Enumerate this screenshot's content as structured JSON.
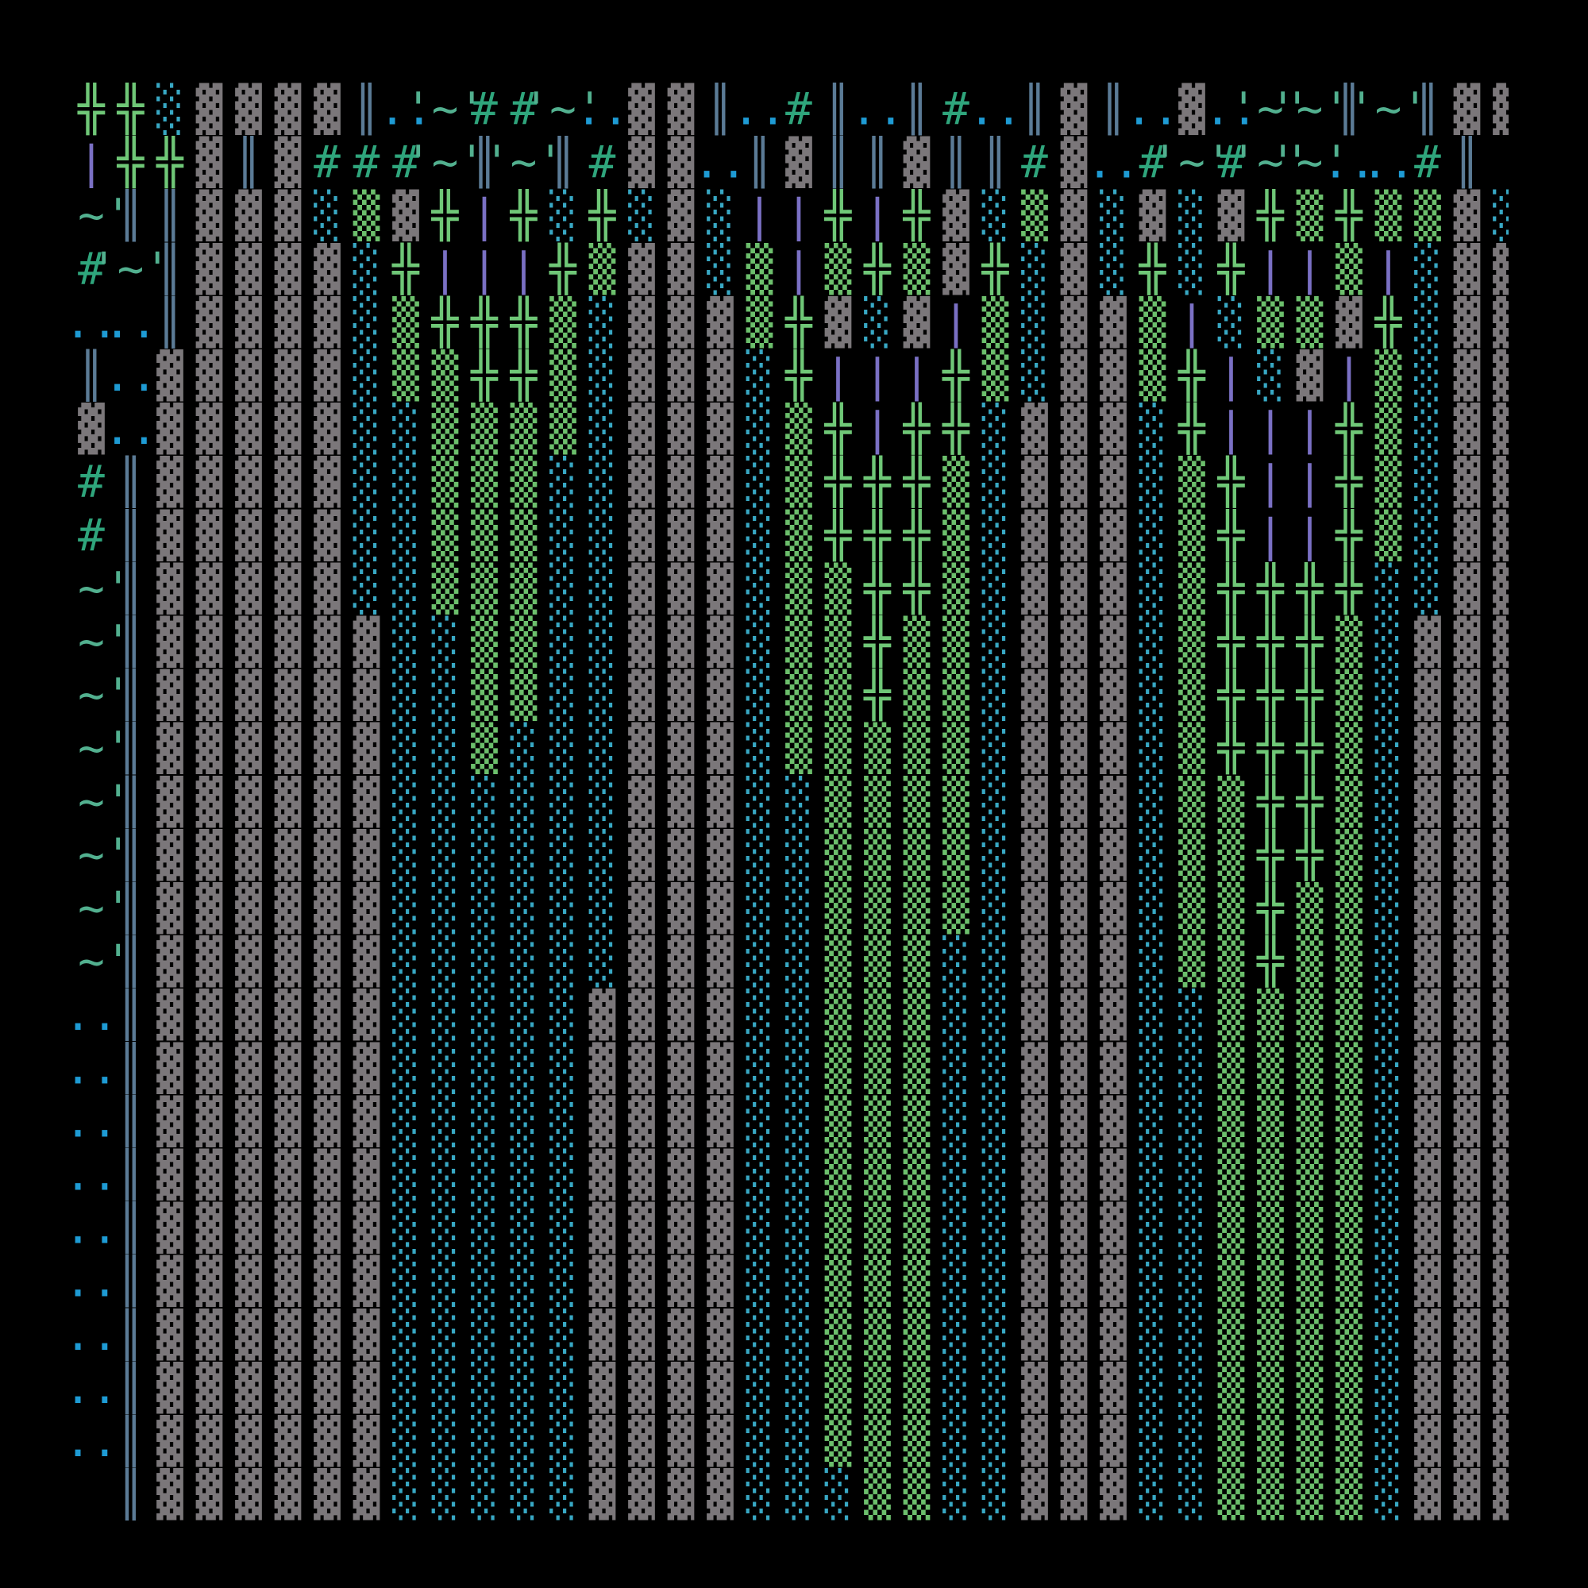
{
  "map": {
    "palette": {
      "▓": "#7b777a",
      "▒": "#6cbf6c",
      "░": "#38a8c4",
      "╬": "#6fc777",
      "║": "#5b7b96",
      "|": "#7a70c4",
      "#": "#2fa57c",
      "'~'": "#52b08f",
      "..": "#1e9bd4"
    },
    "rows": [
      [
        "╬",
        "╬",
        "░",
        "▓",
        "▓",
        "▓",
        "▓",
        "║",
        "..",
        "'~'",
        "#",
        "#",
        "'~'",
        "..",
        "▓",
        "▓",
        "║",
        "..",
        "#",
        "║",
        "..",
        "║",
        "#",
        "..",
        "║",
        "▓",
        "║",
        "..",
        "▓",
        "..",
        "'~'",
        "'~'",
        "║",
        "'~'",
        "║",
        "▓",
        "▓"
      ],
      [
        "|",
        "╬",
        "╬",
        "▓",
        "║",
        "▓",
        "#",
        "#",
        "#",
        "'~'",
        "║",
        "'~'",
        "║",
        "#",
        "▓",
        "▓",
        "..",
        "║",
        "▓",
        "║",
        "║",
        "▓",
        "║",
        "║",
        "#",
        "▓",
        "..",
        "#",
        "'~'",
        "#",
        "'~'",
        "'~'",
        "..",
        "..",
        "#",
        "║",
        null
      ],
      [
        "'~'",
        "║",
        "║",
        "▓",
        "▓",
        "▓",
        "░",
        "▒",
        "▓",
        "╬",
        "|",
        "╬",
        "░",
        "╬",
        "░",
        "▓",
        "░",
        "|",
        "|",
        "╬",
        "|",
        "╬",
        "▓",
        "░",
        "▒",
        "▓",
        "░",
        "▓",
        "░",
        "▓",
        "╬",
        "▒",
        "╬",
        "▒",
        "▒",
        "▓",
        "░"
      ],
      [
        "#",
        "'~'",
        "║",
        "▓",
        "▓",
        "▓",
        "▓",
        "░",
        "╬",
        "|",
        "|",
        "|",
        "╬",
        "▒",
        "▓",
        "▓",
        "░",
        "▒",
        "|",
        "▒",
        "╬",
        "▒",
        "▓",
        "╬",
        "░",
        "▓",
        "░",
        "╬",
        "░",
        "╬",
        "|",
        "|",
        "▒",
        "|",
        "░",
        "▓",
        "▓"
      ],
      [
        "..",
        "..",
        "║",
        "▓",
        "▓",
        "▓",
        "▓",
        "░",
        "▒",
        "╬",
        "╬",
        "╬",
        "▒",
        "░",
        "▓",
        "▓",
        "▓",
        "▒",
        "╬",
        "▓",
        "░",
        "▓",
        "|",
        "▒",
        "░",
        "▓",
        "▓",
        "▒",
        "|",
        "░",
        "▒",
        "▒",
        "▓",
        "╬",
        "░",
        "▓",
        "▓"
      ],
      [
        "║",
        "..",
        "▓",
        "▓",
        "▓",
        "▓",
        "▓",
        "░",
        "▒",
        "▒",
        "╬",
        "╬",
        "▒",
        "░",
        "▓",
        "▓",
        "▓",
        "░",
        "╬",
        "|",
        "|",
        "|",
        "╬",
        "▒",
        "░",
        "▓",
        "▓",
        "▒",
        "╬",
        "|",
        "░",
        "▓",
        "|",
        "▒",
        "░",
        "▓",
        "▓"
      ],
      [
        "▓",
        "..",
        "▓",
        "▓",
        "▓",
        "▓",
        "▓",
        "░",
        "░",
        "▒",
        "▒",
        "▒",
        "▒",
        "░",
        "▓",
        "▓",
        "▓",
        "░",
        "▒",
        "╬",
        "|",
        "╬",
        "╬",
        "░",
        "▓",
        "▓",
        "▓",
        "░",
        "╬",
        "|",
        "|",
        "|",
        "╬",
        "▒",
        "░",
        "▓",
        "▓"
      ],
      [
        "#",
        "║",
        "▓",
        "▓",
        "▓",
        "▓",
        "▓",
        "░",
        "░",
        "▒",
        "▒",
        "▒",
        "░",
        "░",
        "▓",
        "▓",
        "▓",
        "░",
        "▒",
        "╬",
        "╬",
        "╬",
        "▒",
        "░",
        "▓",
        "▓",
        "▓",
        "░",
        "▒",
        "╬",
        "|",
        "|",
        "╬",
        "▒",
        "░",
        "▓",
        "▓"
      ],
      [
        "#",
        "║",
        "▓",
        "▓",
        "▓",
        "▓",
        "▓",
        "░",
        "░",
        "▒",
        "▒",
        "▒",
        "░",
        "░",
        "▓",
        "▓",
        "▓",
        "░",
        "▒",
        "╬",
        "╬",
        "╬",
        "▒",
        "░",
        "▓",
        "▓",
        "▓",
        "░",
        "▒",
        "╬",
        "|",
        "|",
        "╬",
        "▒",
        "░",
        "▓",
        "▓"
      ],
      [
        "'~'",
        "║",
        "▓",
        "▓",
        "▓",
        "▓",
        "▓",
        "░",
        "░",
        "▒",
        "▒",
        "▒",
        "░",
        "░",
        "▓",
        "▓",
        "▓",
        "░",
        "▒",
        "▒",
        "╬",
        "╬",
        "▒",
        "░",
        "▓",
        "▓",
        "▓",
        "░",
        "▒",
        "╬",
        "╬",
        "╬",
        "╬",
        "░",
        "░",
        "▓",
        "▓"
      ],
      [
        "'~'",
        "║",
        "▓",
        "▓",
        "▓",
        "▓",
        "▓",
        "▓",
        "░",
        "░",
        "▒",
        "▒",
        "░",
        "░",
        "▓",
        "▓",
        "▓",
        "░",
        "▒",
        "▒",
        "╬",
        "▒",
        "▒",
        "░",
        "▓",
        "▓",
        "▓",
        "░",
        "▒",
        "╬",
        "╬",
        "╬",
        "▒",
        "░",
        "▓",
        "▓",
        "▓"
      ],
      [
        "'~'",
        "║",
        "▓",
        "▓",
        "▓",
        "▓",
        "▓",
        "▓",
        "░",
        "░",
        "▒",
        "▒",
        "░",
        "░",
        "▓",
        "▓",
        "▓",
        "░",
        "▒",
        "▒",
        "╬",
        "▒",
        "▒",
        "░",
        "▓",
        "▓",
        "▓",
        "░",
        "▒",
        "╬",
        "╬",
        "╬",
        "▒",
        "░",
        "▓",
        "▓",
        "▓"
      ],
      [
        "'~'",
        "║",
        "▓",
        "▓",
        "▓",
        "▓",
        "▓",
        "▓",
        "░",
        "░",
        "▒",
        "░",
        "░",
        "░",
        "▓",
        "▓",
        "▓",
        "░",
        "▒",
        "▒",
        "▒",
        "▒",
        "▒",
        "░",
        "▓",
        "▓",
        "▓",
        "░",
        "▒",
        "╬",
        "╬",
        "╬",
        "▒",
        "░",
        "▓",
        "▓",
        "▓"
      ],
      [
        "'~'",
        "║",
        "▓",
        "▓",
        "▓",
        "▓",
        "▓",
        "▓",
        "░",
        "░",
        "░",
        "░",
        "░",
        "░",
        "▓",
        "▓",
        "▓",
        "░",
        "░",
        "▒",
        "▒",
        "▒",
        "▒",
        "░",
        "▓",
        "▓",
        "▓",
        "░",
        "▒",
        "▒",
        "╬",
        "╬",
        "▒",
        "░",
        "▓",
        "▓",
        "▓"
      ],
      [
        "'~'",
        "║",
        "▓",
        "▓",
        "▓",
        "▓",
        "▓",
        "▓",
        "░",
        "░",
        "░",
        "░",
        "░",
        "░",
        "▓",
        "▓",
        "▓",
        "░",
        "░",
        "▒",
        "▒",
        "▒",
        "▒",
        "░",
        "▓",
        "▓",
        "▓",
        "░",
        "▒",
        "▒",
        "╬",
        "╬",
        "▒",
        "░",
        "▓",
        "▓",
        "▓"
      ],
      [
        "'~'",
        "║",
        "▓",
        "▓",
        "▓",
        "▓",
        "▓",
        "▓",
        "░",
        "░",
        "░",
        "░",
        "░",
        "░",
        "▓",
        "▓",
        "▓",
        "░",
        "░",
        "▒",
        "▒",
        "▒",
        "▒",
        "░",
        "▓",
        "▓",
        "▓",
        "░",
        "▒",
        "▒",
        "╬",
        "▒",
        "▒",
        "░",
        "▓",
        "▓",
        "▓"
      ],
      [
        "'~'",
        "║",
        "▓",
        "▓",
        "▓",
        "▓",
        "▓",
        "▓",
        "░",
        "░",
        "░",
        "░",
        "░",
        "░",
        "▓",
        "▓",
        "▓",
        "░",
        "░",
        "▒",
        "▒",
        "▒",
        "░",
        "░",
        "▓",
        "▓",
        "▓",
        "░",
        "▒",
        "▒",
        "╬",
        "▒",
        "▒",
        "░",
        "▓",
        "▓",
        "▓"
      ],
      [
        "..",
        "║",
        "▓",
        "▓",
        "▓",
        "▓",
        "▓",
        "▓",
        "░",
        "░",
        "░",
        "░",
        "░",
        "▓",
        "▓",
        "▓",
        "▓",
        "░",
        "░",
        "▒",
        "▒",
        "▒",
        "░",
        "░",
        "▓",
        "▓",
        "▓",
        "░",
        "░",
        "▒",
        "▒",
        "▒",
        "▒",
        "░",
        "▓",
        "▓",
        "▓"
      ],
      [
        "..",
        "║",
        "▓",
        "▓",
        "▓",
        "▓",
        "▓",
        "▓",
        "░",
        "░",
        "░",
        "░",
        "░",
        "▓",
        "▓",
        "▓",
        "▓",
        "░",
        "░",
        "▒",
        "▒",
        "▒",
        "░",
        "░",
        "▓",
        "▓",
        "▓",
        "░",
        "░",
        "▒",
        "▒",
        "▒",
        "▒",
        "░",
        "▓",
        "▓",
        "▓"
      ],
      [
        "..",
        "║",
        "▓",
        "▓",
        "▓",
        "▓",
        "▓",
        "▓",
        "░",
        "░",
        "░",
        "░",
        "░",
        "▓",
        "▓",
        "▓",
        "▓",
        "░",
        "░",
        "▒",
        "▒",
        "▒",
        "░",
        "░",
        "▓",
        "▓",
        "▓",
        "░",
        "░",
        "▒",
        "▒",
        "▒",
        "▒",
        "░",
        "▓",
        "▓",
        "▓"
      ],
      [
        "..",
        "║",
        "▓",
        "▓",
        "▓",
        "▓",
        "▓",
        "▓",
        "░",
        "░",
        "░",
        "░",
        "░",
        "▓",
        "▓",
        "▓",
        "▓",
        "░",
        "░",
        "▒",
        "▒",
        "▒",
        "░",
        "░",
        "▓",
        "▓",
        "▓",
        "░",
        "░",
        "▒",
        "▒",
        "▒",
        "▒",
        "░",
        "▓",
        "▓",
        "▓"
      ],
      [
        "..",
        "║",
        "▓",
        "▓",
        "▓",
        "▓",
        "▓",
        "▓",
        "░",
        "░",
        "░",
        "░",
        "░",
        "▓",
        "▓",
        "▓",
        "▓",
        "░",
        "░",
        "▒",
        "▒",
        "▒",
        "░",
        "░",
        "▓",
        "▓",
        "▓",
        "░",
        "░",
        "▒",
        "▒",
        "▒",
        "▒",
        "░",
        "▓",
        "▓",
        "▓"
      ],
      [
        "..",
        "║",
        "▓",
        "▓",
        "▓",
        "▓",
        "▓",
        "▓",
        "░",
        "░",
        "░",
        "░",
        "░",
        "▓",
        "▓",
        "▓",
        "▓",
        "░",
        "░",
        "▒",
        "▒",
        "▒",
        "░",
        "░",
        "▓",
        "▓",
        "▓",
        "░",
        "░",
        "▒",
        "▒",
        "▒",
        "▒",
        "░",
        "▓",
        "▓",
        "▓"
      ],
      [
        "..",
        "║",
        "▓",
        "▓",
        "▓",
        "▓",
        "▓",
        "▓",
        "░",
        "░",
        "░",
        "░",
        "░",
        "▓",
        "▓",
        "▓",
        "▓",
        "░",
        "░",
        "▒",
        "▒",
        "▒",
        "░",
        "░",
        "▓",
        "▓",
        "▓",
        "░",
        "░",
        "▒",
        "▒",
        "▒",
        "▒",
        "░",
        "▓",
        "▓",
        "▓"
      ],
      [
        "..",
        "║",
        "▓",
        "▓",
        "▓",
        "▓",
        "▓",
        "▓",
        "░",
        "░",
        "░",
        "░",
        "░",
        "▓",
        "▓",
        "▓",
        "▓",
        "░",
        "░",
        "▒",
        "▒",
        "▒",
        "░",
        "░",
        "▓",
        "▓",
        "▓",
        "░",
        "░",
        "▒",
        "▒",
        "▒",
        "▒",
        "░",
        "▓",
        "▓",
        "▓"
      ],
      [
        "..",
        "║",
        "▓",
        "▓",
        "▓",
        "▓",
        "▓",
        "▓",
        "░",
        "░",
        "░",
        "░",
        "░",
        "▓",
        "▓",
        "▓",
        "▓",
        "░",
        "░",
        "▒",
        "▒",
        "▒",
        "░",
        "░",
        "▓",
        "▓",
        "▓",
        "░",
        "░",
        "▒",
        "▒",
        "▒",
        "▒",
        "░",
        "▓",
        "▓",
        "▓"
      ],
      [
        null,
        "║",
        "▓",
        "▓",
        "▓",
        "▓",
        "▓",
        "▓",
        "░",
        "░",
        "░",
        "░",
        "░",
        "▓",
        "▓",
        "▓",
        "▓",
        "░",
        "░",
        "░",
        "▒",
        "▒",
        "░",
        "░",
        "▓",
        "▓",
        "▓",
        "░",
        "░",
        "▒",
        "▒",
        "▒",
        "▒",
        "░",
        "▓",
        "▓",
        "▓"
      ]
    ]
  }
}
